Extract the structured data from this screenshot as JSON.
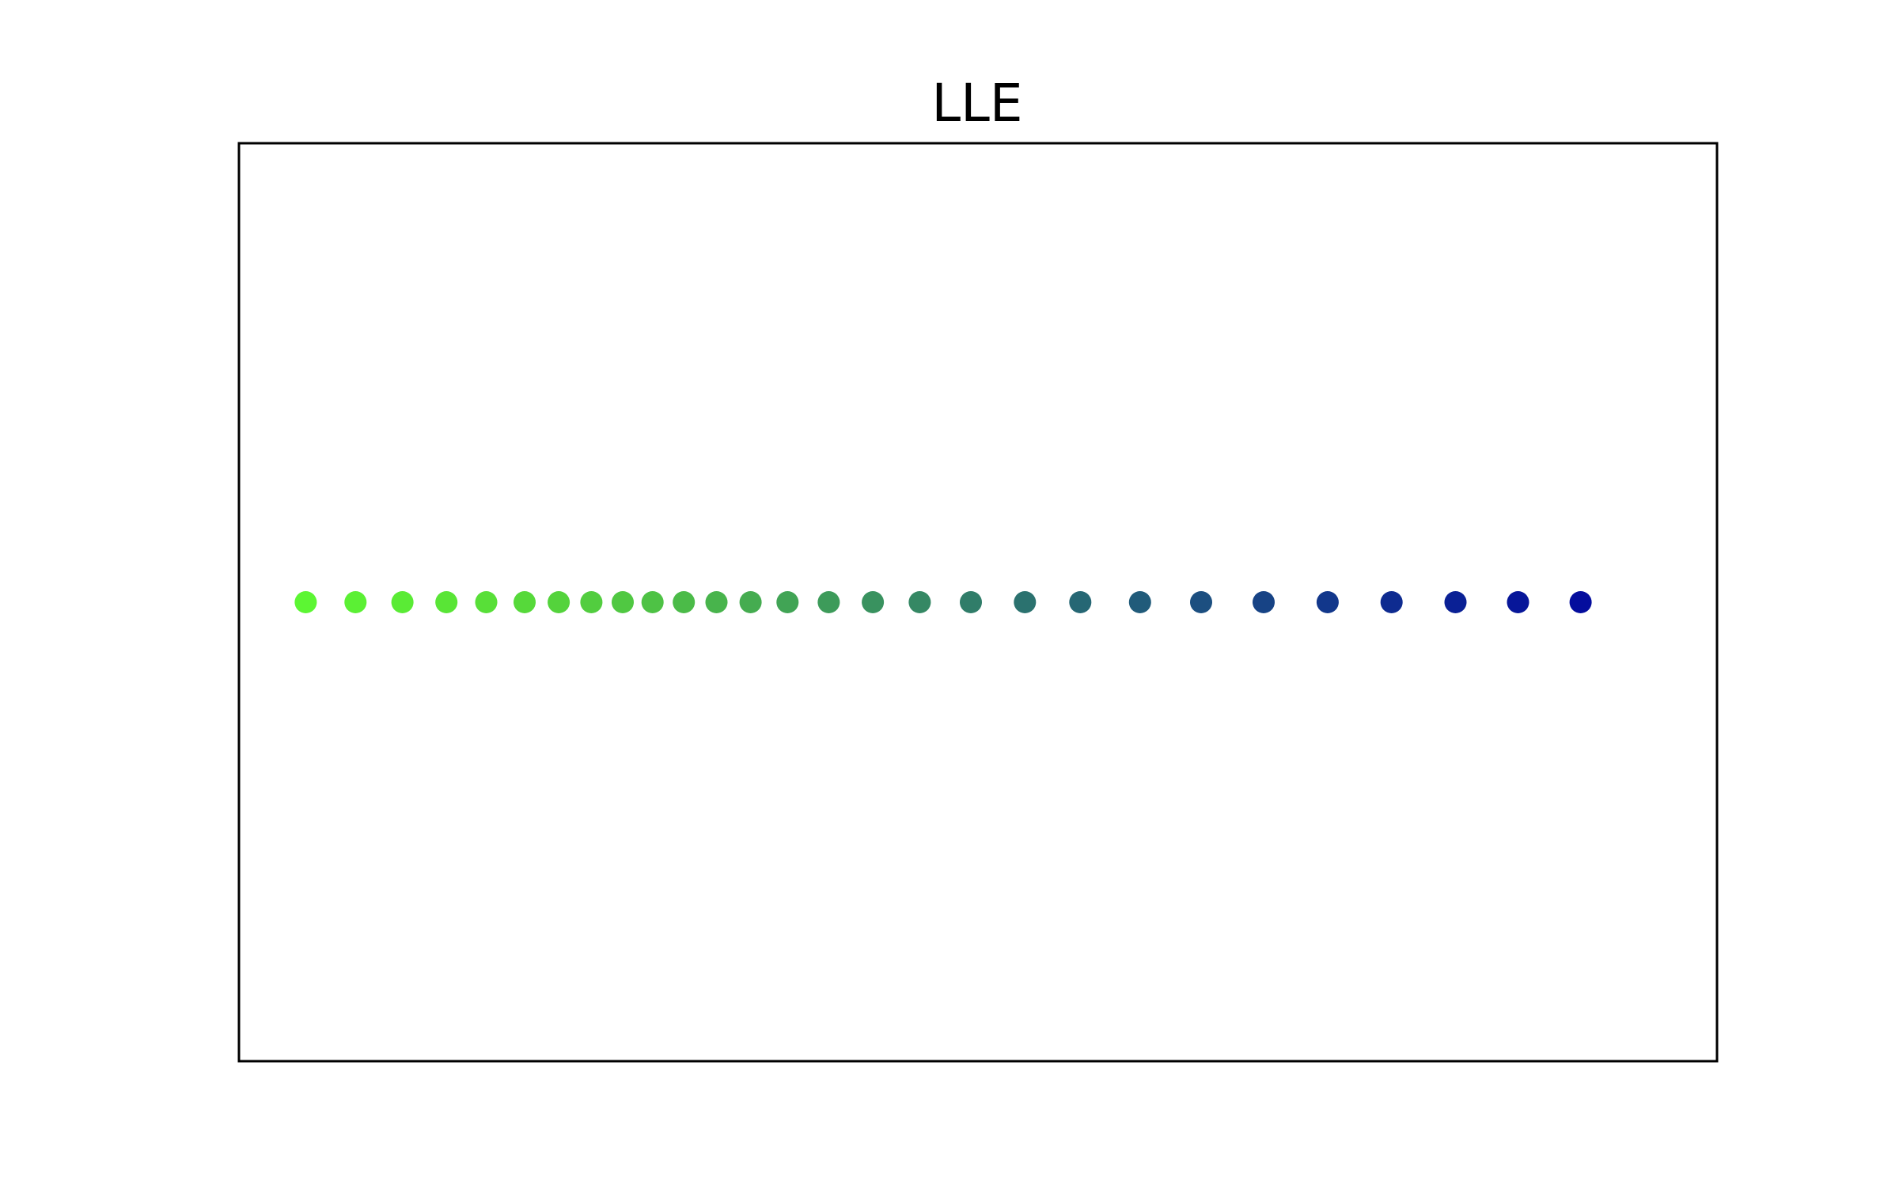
{
  "chart_data": {
    "type": "scatter",
    "title": "LLE",
    "xlabel": "",
    "ylabel": "",
    "xlim": [
      -0.052,
      0.052
    ],
    "ylim": [
      -1.0,
      1.0
    ],
    "grid": false,
    "show_ticks": false,
    "legend": null,
    "points": [
      {
        "x": -0.0473,
        "y": 0,
        "color": "#5cf633"
      },
      {
        "x": -0.0438,
        "y": 0,
        "color": "#5bf034"
      },
      {
        "x": -0.0405,
        "y": 0,
        "color": "#5aeb35"
      },
      {
        "x": -0.0374,
        "y": 0,
        "color": "#59e536"
      },
      {
        "x": -0.0346,
        "y": 0,
        "color": "#58df38"
      },
      {
        "x": -0.0319,
        "y": 0,
        "color": "#56d93a"
      },
      {
        "x": -0.0295,
        "y": 0,
        "color": "#54d33c"
      },
      {
        "x": -0.0272,
        "y": 0,
        "color": "#52cd3f"
      },
      {
        "x": -0.025,
        "y": 0,
        "color": "#50c842"
      },
      {
        "x": -0.0229,
        "y": 0,
        "color": "#4ec245"
      },
      {
        "x": -0.0207,
        "y": 0,
        "color": "#4bbb48"
      },
      {
        "x": -0.0184,
        "y": 0,
        "color": "#48b44c"
      },
      {
        "x": -0.016,
        "y": 0,
        "color": "#45ac50"
      },
      {
        "x": -0.0134,
        "y": 0,
        "color": "#41a455"
      },
      {
        "x": -0.0105,
        "y": 0,
        "color": "#3d9b5a"
      },
      {
        "x": -0.0074,
        "y": 0,
        "color": "#39925f"
      },
      {
        "x": -0.0041,
        "y": 0,
        "color": "#358864"
      },
      {
        "x": -0.0005,
        "y": 0,
        "color": "#307d69"
      },
      {
        "x": 0.0033,
        "y": 0,
        "color": "#2b726f"
      },
      {
        "x": 0.0072,
        "y": 0,
        "color": "#266774"
      },
      {
        "x": 0.0114,
        "y": 0,
        "color": "#215b7a"
      },
      {
        "x": 0.0157,
        "y": 0,
        "color": "#1c4f80"
      },
      {
        "x": 0.0201,
        "y": 0,
        "color": "#174385"
      },
      {
        "x": 0.0246,
        "y": 0,
        "color": "#12378b"
      },
      {
        "x": 0.0291,
        "y": 0,
        "color": "#0e2b90"
      },
      {
        "x": 0.0336,
        "y": 0,
        "color": "#0a2095"
      },
      {
        "x": 0.038,
        "y": 0,
        "color": "#071699"
      },
      {
        "x": 0.0424,
        "y": 0,
        "color": "#040d9d"
      }
    ]
  }
}
